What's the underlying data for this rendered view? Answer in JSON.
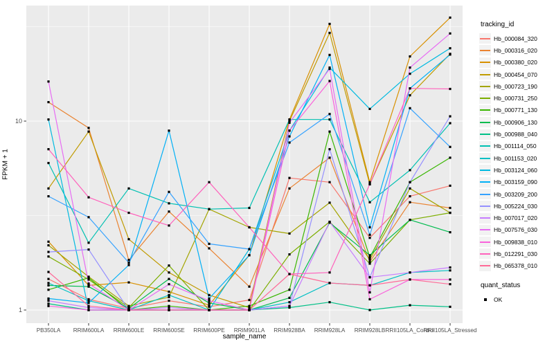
{
  "chart_data": {
    "type": "line",
    "title": "",
    "xlabel": "sample_name",
    "ylabel": "FPKM + 1",
    "y_scale": "log10",
    "y_tick_values": [
      1,
      10
    ],
    "y_tick_labels": [
      "1",
      "10"
    ],
    "y_minor_gridlines": [
      3.162,
      31.62
    ],
    "ylim": [
      0.85,
      40
    ],
    "grid": "on",
    "legend_position": "right",
    "point_marker": "filled-black-square",
    "categories": [
      "PB350LA",
      "RRIM600LA",
      "RRIM600LE",
      "RRIM600SE",
      "RRIM600PE",
      "RRIM901LA",
      "RRIM928BA",
      "RRIM928LA",
      "RRIM928LB",
      "RRII105LA_Control",
      "RRII105LA_Stressed"
    ],
    "series": [
      {
        "name": "Hb_000084_320",
        "color": "#F8766D",
        "values": [
          1.46,
          1.14,
          1.02,
          1.12,
          1.04,
          1.13,
          5.0,
          4.75,
          2.41,
          4.0,
          4.55
        ]
      },
      {
        "name": "Hb_000316_020",
        "color": "#EA8331",
        "values": [
          12.6,
          9.2,
          1.84,
          3.32,
          2.12,
          1.33,
          4.4,
          6.4,
          1.8,
          3.72,
          3.47
        ]
      },
      {
        "name": "Hb_000380_020",
        "color": "#D89000",
        "values": [
          2.3,
          1.35,
          1.4,
          1.25,
          1.06,
          1.95,
          10.2,
          32.7,
          4.75,
          22.0,
          35.3
        ]
      },
      {
        "name": "Hb_000454_070",
        "color": "#C09B00",
        "values": [
          4.4,
          8.8,
          2.37,
          1.58,
          1.2,
          1.03,
          10.0,
          29.3,
          4.63,
          13.7,
          22.7
        ]
      },
      {
        "name": "Hb_000723_190",
        "color": "#A3A500",
        "values": [
          2.2,
          1.5,
          1.05,
          1.17,
          3.42,
          2.74,
          2.54,
          3.7,
          1.85,
          4.4,
          3.27
        ]
      },
      {
        "name": "Hb_000731_250",
        "color": "#7CAE00",
        "values": [
          1.92,
          1.45,
          1.03,
          1.72,
          1.0,
          1.0,
          1.97,
          2.93,
          1.76,
          3.0,
          3.27
        ]
      },
      {
        "name": "Hb_000771_130",
        "color": "#39B600",
        "values": [
          1.28,
          1.48,
          1.0,
          1.05,
          1.0,
          1.05,
          1.28,
          8.8,
          1.9,
          4.75,
          6.4
        ]
      },
      {
        "name": "Hb_000906_130",
        "color": "#00BB4E",
        "values": [
          1.35,
          1.33,
          1.02,
          1.46,
          1.09,
          1.0,
          1.16,
          2.9,
          1.95,
          3.0,
          2.58
        ]
      },
      {
        "name": "Hb_000988_040",
        "color": "#00C087",
        "values": [
          1.08,
          1.0,
          1.0,
          1.0,
          1.0,
          1.0,
          1.03,
          1.1,
          1.0,
          1.06,
          1.04
        ]
      },
      {
        "name": "Hb_001114_050",
        "color": "#00C0B2",
        "values": [
          6.0,
          2.27,
          4.4,
          3.67,
          3.42,
          3.47,
          10.2,
          10.2,
          3.72,
          5.5,
          9.75
        ]
      },
      {
        "name": "Hb_001153_020",
        "color": "#00BFC4",
        "values": [
          1.39,
          1.12,
          1.0,
          1.2,
          1.0,
          1.0,
          1.1,
          1.39,
          1.35,
          1.58,
          1.62
        ]
      },
      {
        "name": "Hb_003124_060",
        "color": "#00BAE0",
        "values": [
          10.2,
          1.0,
          1.0,
          1.0,
          1.0,
          2.1,
          8.9,
          19.2,
          11.6,
          17.8,
          24.3
        ]
      },
      {
        "name": "Hb_003159_090",
        "color": "#00B0F6",
        "values": [
          1.15,
          1.09,
          1.73,
          8.9,
          1.15,
          1.95,
          8.3,
          22.4,
          2.74,
          14.9,
          22.5
        ]
      },
      {
        "name": "Hb_003209_200",
        "color": "#35A2FF",
        "values": [
          4.0,
          3.1,
          1.78,
          4.22,
          2.24,
          2.1,
          7.7,
          10.9,
          2.5,
          11.7,
          7.3
        ]
      },
      {
        "name": "Hb_005224_030",
        "color": "#9590FF",
        "values": [
          2.03,
          2.09,
          1.0,
          1.0,
          1.0,
          1.0,
          1.05,
          7.1,
          1.49,
          4.75,
          10.6
        ]
      },
      {
        "name": "Hb_007017_020",
        "color": "#C77CFF",
        "values": [
          1.12,
          1.03,
          1.0,
          1.03,
          1.0,
          1.0,
          1.05,
          2.93,
          1.49,
          1.58,
          1.68
        ]
      },
      {
        "name": "Hb_007576_030",
        "color": "#E76BF3",
        "values": [
          16.2,
          1.38,
          1.0,
          1.37,
          1.12,
          1.0,
          9.8,
          18.9,
          1.24,
          19.2,
          29.1
        ]
      },
      {
        "name": "Hb_009838_010",
        "color": "#FA62DB",
        "values": [
          1.05,
          1.0,
          1.0,
          1.0,
          1.0,
          1.0,
          8.9,
          16.3,
          1.14,
          1.45,
          1.45
        ]
      },
      {
        "name": "Hb_012291_030",
        "color": "#FF62BC",
        "values": [
          7.1,
          3.95,
          3.27,
          2.8,
          4.75,
          2.74,
          1.55,
          1.58,
          4.63,
          14.9,
          14.8
        ]
      },
      {
        "name": "Hb_065378_010",
        "color": "#FF6A98",
        "values": [
          1.59,
          1.05,
          1.0,
          1.0,
          1.0,
          1.0,
          1.55,
          1.39,
          1.35,
          1.45,
          1.37
        ]
      }
    ]
  },
  "legend": {
    "tracking_title": "tracking_id",
    "quant_title": "quant_status",
    "quant_items": [
      {
        "label": "OK"
      }
    ]
  },
  "colors": {
    "background": "#FFFFFF",
    "panel_bg": "#EBEBEB",
    "gridline": "#FFFFFF",
    "tick_text": "#4D4D4D",
    "tick_mark": "#333333",
    "point": "#000000",
    "legend_key_bg": "#F2F2F2"
  }
}
